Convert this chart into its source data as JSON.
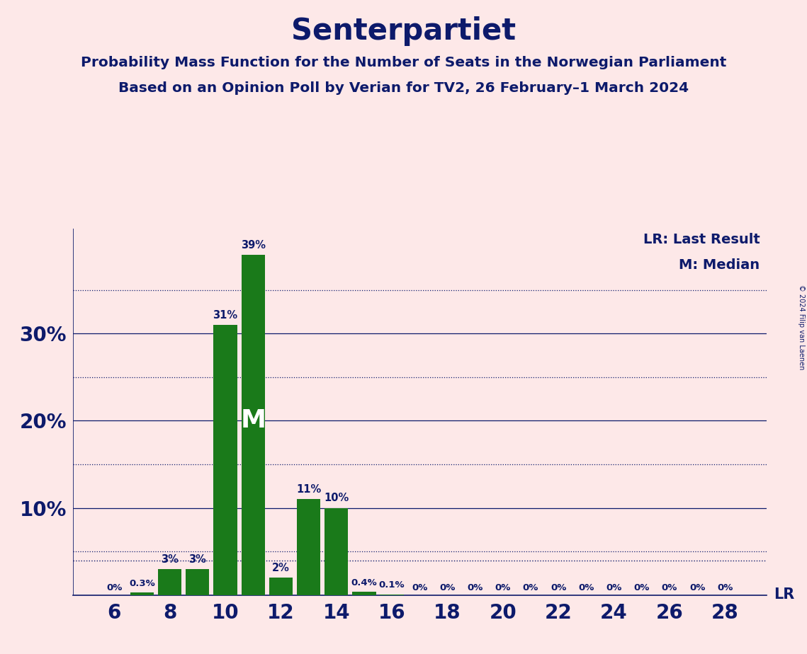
{
  "title": "Senterpartiet",
  "subtitle1": "Probability Mass Function for the Number of Seats in the Norwegian Parliament",
  "subtitle2": "Based on an Opinion Poll by Verian for TV2, 26 February–1 March 2024",
  "copyright": "© 2024 Filip van Laenen",
  "legend_lr": "LR: Last Result",
  "legend_m": "M: Median",
  "seats": [
    6,
    7,
    8,
    9,
    10,
    11,
    12,
    13,
    14,
    15,
    16,
    17,
    18,
    19,
    20,
    21,
    22,
    23,
    24,
    25,
    26,
    27,
    28
  ],
  "values": [
    0.0,
    0.3,
    3.0,
    3.0,
    31.0,
    39.0,
    2.0,
    11.0,
    10.0,
    0.4,
    0.1,
    0.0,
    0.0,
    0.0,
    0.0,
    0.0,
    0.0,
    0.0,
    0.0,
    0.0,
    0.0,
    0.0,
    0.0
  ],
  "labels": [
    "0%",
    "0.3%",
    "3%",
    "3%",
    "31%",
    "39%",
    "2%",
    "11%",
    "10%",
    "0.4%",
    "0.1%",
    "0%",
    "0%",
    "0%",
    "0%",
    "0%",
    "0%",
    "0%",
    "0%",
    "0%",
    "0%",
    "0%",
    "0%"
  ],
  "bar_color": "#1a7a1a",
  "bg_color": "#fde8e8",
  "text_color": "#0d1a6b",
  "grid_color": "#0d1a6b",
  "lr_value": 4.0,
  "median_seat": 11,
  "yticks_solid": [
    10,
    20,
    30
  ],
  "yticks_dotted": [
    5,
    15,
    25,
    35
  ],
  "lr_dotted": true,
  "ylim": [
    0,
    42
  ],
  "xtick_step": 2,
  "xtick_start": 6,
  "xtick_end": 28
}
